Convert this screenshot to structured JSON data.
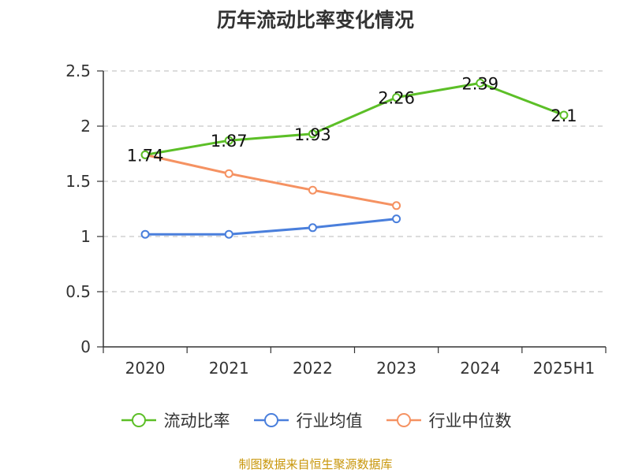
{
  "chart_data": {
    "type": "line",
    "title": "历年流动比率变化情况",
    "categories": [
      "2020",
      "2021",
      "2022",
      "2023",
      "2024",
      "2025H1"
    ],
    "ylim": [
      0,
      2.5
    ],
    "yticks": [
      "0",
      "0.5",
      "1",
      "1.5",
      "2",
      "2.5"
    ],
    "grid": true,
    "legend_position": "bottom",
    "series": [
      {
        "name": "流动比率",
        "color": "#5cbf27",
        "values": [
          1.74,
          1.87,
          1.93,
          2.26,
          2.39,
          2.1
        ],
        "labels": [
          "1.74",
          "1.87",
          "1.93",
          "2.26",
          "2.39",
          "2.1"
        ]
      },
      {
        "name": "行业均值",
        "color": "#4a7fdc",
        "values": [
          1.02,
          1.02,
          1.08,
          1.16,
          null,
          null
        ]
      },
      {
        "name": "行业中位数",
        "color": "#f59262",
        "values": [
          1.74,
          1.57,
          1.42,
          1.28,
          null,
          null
        ]
      }
    ]
  },
  "source_note": "制图数据来自恒生聚源数据库"
}
